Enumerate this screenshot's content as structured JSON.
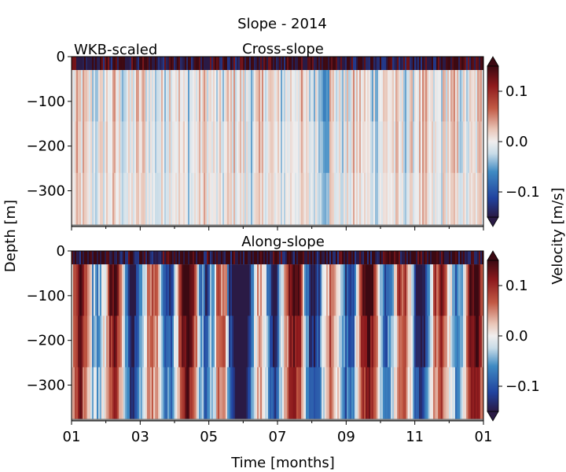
{
  "figure": {
    "suptitle": "Slope - 2014",
    "xlabel": "Time [months]",
    "ylabel": "Depth [m]",
    "colorbar_label": "Velocity [m/s]",
    "corner_label": "WKB-scaled"
  },
  "chart_data": [
    {
      "type": "heatmap",
      "title": "Cross-slope",
      "x_tick_labels": [
        "01",
        "03",
        "05",
        "07",
        "09",
        "11",
        "01"
      ],
      "x_range_months": [
        0,
        12
      ],
      "y_ticks": [
        0,
        -100,
        -200,
        -300
      ],
      "y_tick_labels": [
        "0",
        "−100",
        "−200",
        "−300"
      ],
      "ylim": [
        -380,
        0
      ],
      "colorbar": {
        "vmin": -0.15,
        "vmax": 0.15,
        "ticks": [
          0.1,
          0.0,
          -0.1
        ],
        "tick_labels": [
          "0.1",
          "0.0",
          "−0.1"
        ],
        "extend": "both",
        "colormap": "balance"
      },
      "surface_layer_depth": -30,
      "masked_bottom_depth": -375,
      "typical_amplitude": 0.05
    },
    {
      "type": "heatmap",
      "title": "Along-slope",
      "x_tick_labels": [
        "01",
        "03",
        "05",
        "07",
        "09",
        "11",
        "01"
      ],
      "x_range_months": [
        0,
        12
      ],
      "y_ticks": [
        0,
        -100,
        -200,
        -300
      ],
      "y_tick_labels": [
        "0",
        "−100",
        "−200",
        "−300"
      ],
      "ylim": [
        -380,
        0
      ],
      "colorbar": {
        "vmin": -0.15,
        "vmax": 0.15,
        "ticks": [
          0.1,
          0.0,
          -0.1
        ],
        "tick_labels": [
          "0.1",
          "0.0",
          "−0.1"
        ],
        "extend": "both",
        "colormap": "balance"
      },
      "surface_layer_depth": -30,
      "masked_bottom_depth": -375,
      "typical_amplitude": 0.15
    }
  ],
  "colors": {
    "cmap_stops": [
      "#2a1a45",
      "#21429e",
      "#3f8ac3",
      "#c8dce8",
      "#f0eeee",
      "#e9c6b8",
      "#c25a45",
      "#8e1a1d",
      "#3c0912"
    ],
    "masked": "#808080"
  }
}
